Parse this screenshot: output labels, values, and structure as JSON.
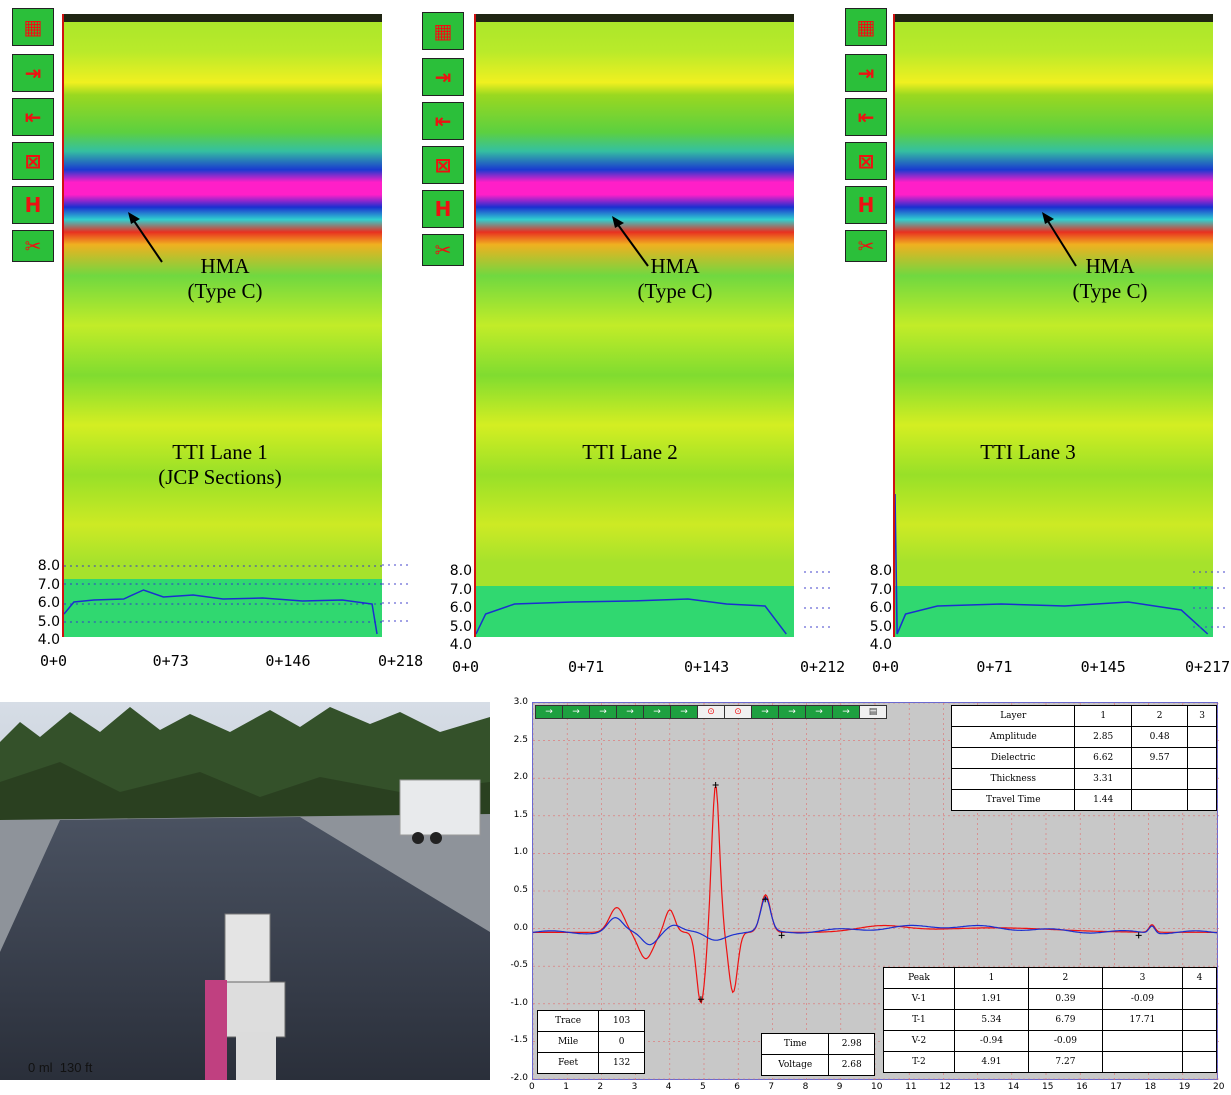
{
  "panels": [
    {
      "id": "lane1",
      "annotation_line1": "HMA",
      "annotation_line2": "(Type C)",
      "lane_label_line1": "TTI Lane 1",
      "lane_label_line2": "(JCP Sections)",
      "x_labels": [
        "0+0",
        "0+73",
        "0+146",
        "0+218"
      ]
    },
    {
      "id": "lane2",
      "annotation_line1": "HMA",
      "annotation_line2": "(Type C)",
      "lane_label_line1": "TTI Lane 2",
      "lane_label_line2": "",
      "x_labels": [
        "0+0",
        "0+71",
        "0+143",
        "0+212"
      ]
    },
    {
      "id": "lane3",
      "annotation_line1": "HMA",
      "annotation_line2": "(Type C)",
      "lane_label_line1": "TTI Lane 3",
      "lane_label_line2": "",
      "x_labels": [
        "0+0",
        "0+71",
        "0+145",
        "0+217"
      ]
    }
  ],
  "dielectric_scale": [
    "8.0",
    "7.0",
    "6.0",
    "5.0",
    "4.0"
  ],
  "toolbar_icons": [
    "layers-icon",
    "move-right-delete-icon",
    "move-left-delete-icon",
    "delete-range-icon",
    "h-icon",
    "scissors-icon"
  ],
  "video": {
    "overlay_text": "0 ml  130 ft"
  },
  "scope": {
    "y_ticks": [
      "3.0",
      "2.5",
      "2.0",
      "1.5",
      "1.0",
      "0.5",
      "0.0",
      "-0.5",
      "-1.0",
      "-1.5",
      "-2.0"
    ],
    "x_ticks": [
      "0",
      "1",
      "2",
      "3",
      "4",
      "5",
      "6",
      "7",
      "8",
      "9",
      "10",
      "11",
      "12",
      "13",
      "14",
      "15",
      "16",
      "17",
      "18",
      "19",
      "20"
    ],
    "layer_table": {
      "header": [
        "Layer",
        "1",
        "2",
        "3"
      ],
      "rows": [
        [
          "Amplitude",
          "2.85",
          "0.48",
          ""
        ],
        [
          "Dielectric",
          "6.62",
          "9.57",
          ""
        ],
        [
          "Thickness",
          "3.31",
          "",
          ""
        ],
        [
          "Travel Time",
          "1.44",
          "",
          ""
        ]
      ]
    },
    "peak_table": {
      "header": [
        "Peak",
        "1",
        "2",
        "3",
        "4"
      ],
      "rows": [
        [
          "V-1",
          "1.91",
          "0.39",
          "-0.09",
          ""
        ],
        [
          "T-1",
          "5.34",
          "6.79",
          "17.71",
          ""
        ],
        [
          "V-2",
          "-0.94",
          "-0.09",
          "",
          ""
        ],
        [
          "T-2",
          "4.91",
          "7.27",
          "",
          ""
        ]
      ]
    },
    "trace_table": [
      [
        "Trace",
        "103"
      ],
      [
        "Mile",
        "0"
      ],
      [
        "Feet",
        "132"
      ]
    ],
    "time_table": [
      [
        "Time",
        "2.98"
      ],
      [
        "Voltage",
        "2.68"
      ]
    ]
  },
  "colors": {
    "red": "#e11",
    "blue": "#1a2fd0",
    "green": "#2bbf3a",
    "magenta": "#ff1fc8"
  }
}
